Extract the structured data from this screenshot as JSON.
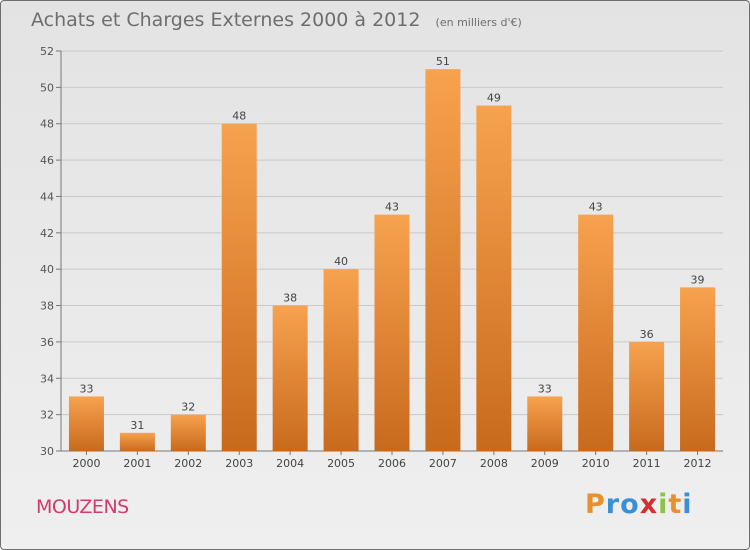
{
  "chart_data": {
    "type": "bar",
    "title": "Achats et Charges Externes 2000 à 2012",
    "unit": "(en milliers d'€)",
    "categories": [
      "2000",
      "2001",
      "2002",
      "2003",
      "2004",
      "2005",
      "2006",
      "2007",
      "2008",
      "2009",
      "2010",
      "2011",
      "2012"
    ],
    "values": [
      33,
      31,
      32,
      48,
      38,
      40,
      43,
      51,
      49,
      33,
      43,
      36,
      39
    ],
    "ylim": [
      30,
      52
    ],
    "yticks": [
      30,
      32,
      34,
      36,
      38,
      40,
      42,
      44,
      46,
      48,
      50,
      52
    ],
    "grid": true,
    "xlabel": "",
    "ylabel": "",
    "bar_color_top": "#f7a24f",
    "bar_color_bottom": "#c86a1c"
  },
  "footer": {
    "commune": "MOUZENS",
    "brand_letters": [
      "P",
      "r",
      "o",
      "x",
      "i",
      "t",
      "i"
    ],
    "brand_colors": [
      "#e8912a",
      "#3a8fd6",
      "#3a8fd6",
      "#d62e2e",
      "#8bc34a",
      "#e8912a",
      "#3a8fd6"
    ]
  }
}
